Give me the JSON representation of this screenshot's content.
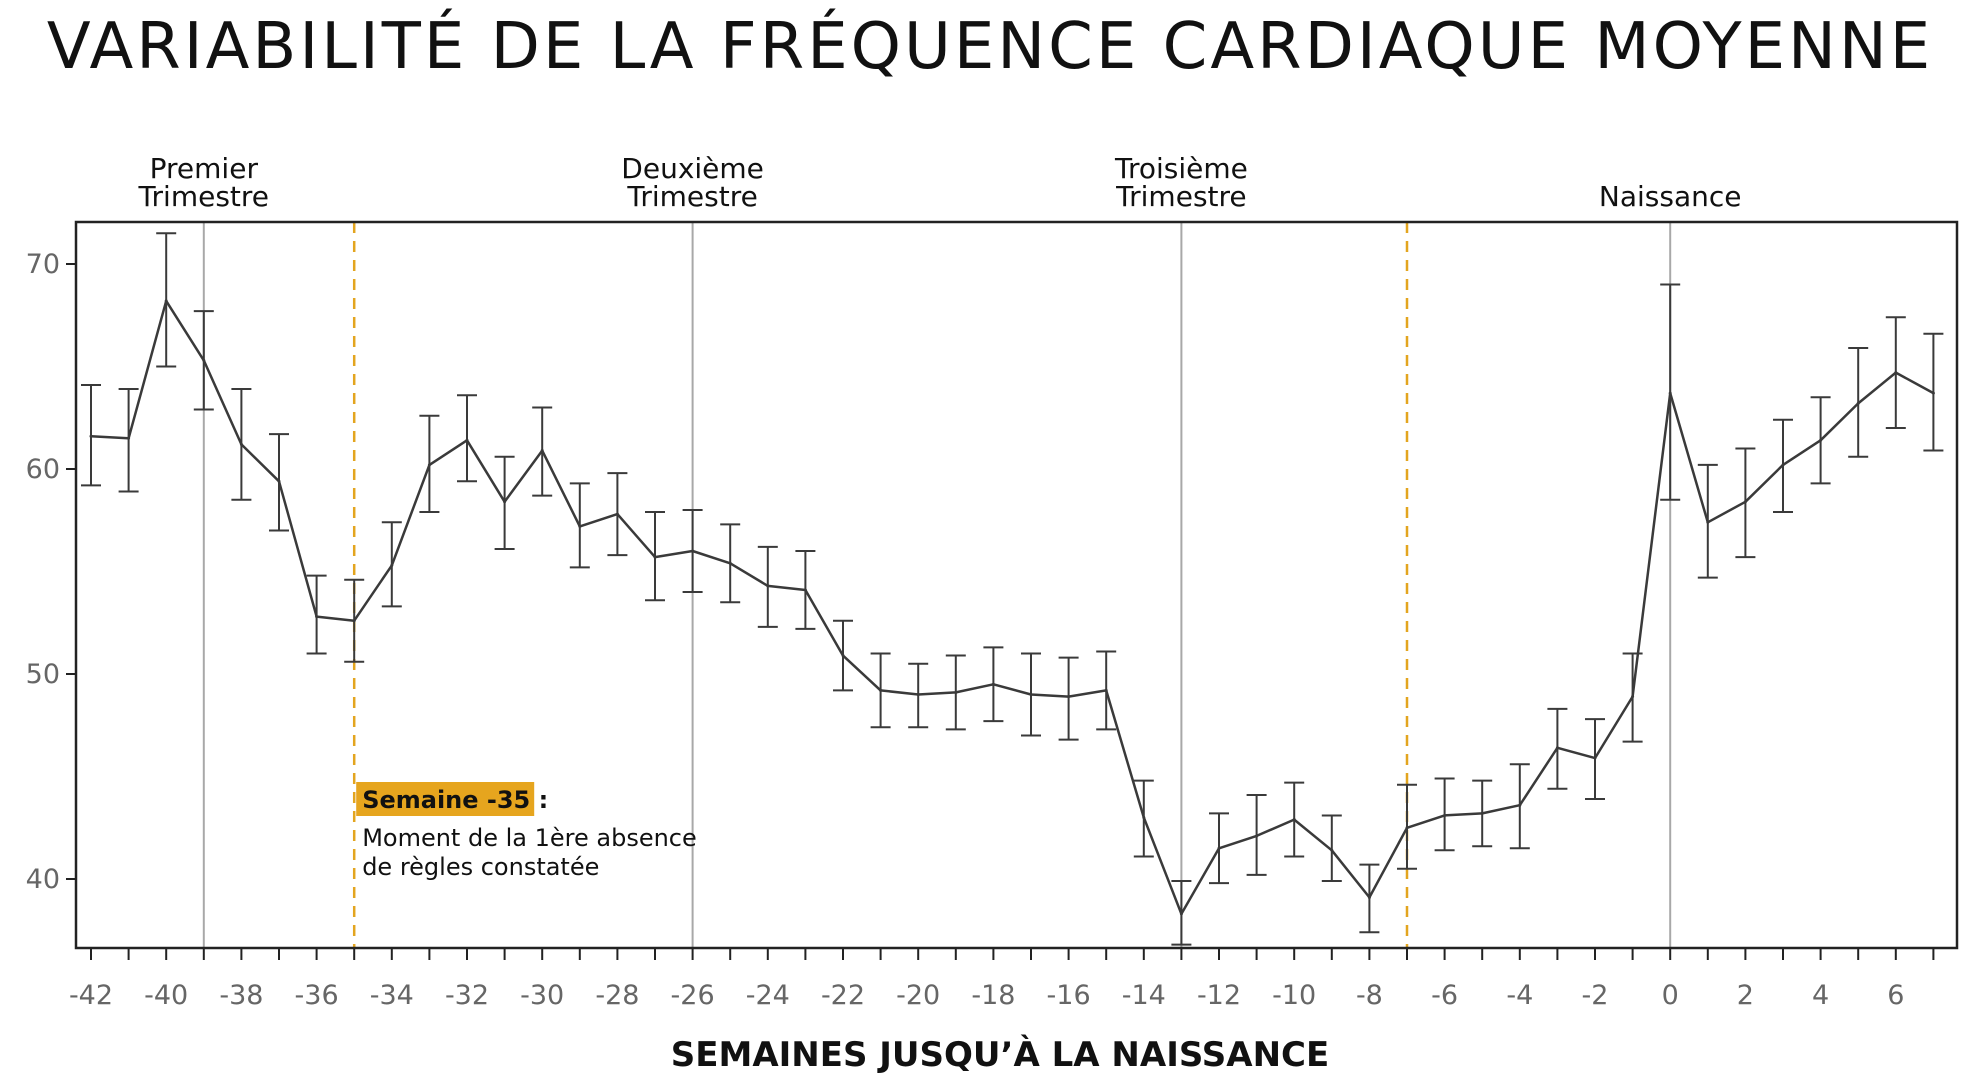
{
  "chart_data": {
    "type": "line",
    "title": "VARIABILITÉ DE LA FRÉQUENCE CARDIAQUE MOYENNE",
    "xlabel": "SEMAINES JUSQU’À LA NAISSANCE",
    "ylabel": "",
    "xlim": [
      -42.2,
      7.3
    ],
    "ylim": [
      36.5,
      72
    ],
    "x_ticks": [
      -42,
      -40,
      -38,
      -36,
      -34,
      -32,
      -30,
      -28,
      -26,
      -24,
      -22,
      -20,
      -18,
      -16,
      -14,
      -12,
      -10,
      -8,
      -6,
      -4,
      -2,
      0,
      2,
      4,
      6
    ],
    "x_tick_labels": [
      "-42",
      "-40",
      "-38",
      "-36",
      "-34",
      "-32",
      "-30",
      "-28",
      "-26",
      "-24",
      "-22",
      "-20",
      "-18",
      "-16",
      "-14",
      "-12",
      "-10",
      "-8",
      "-6",
      "-4",
      "-2",
      "0",
      "2",
      "4",
      "6"
    ],
    "y_ticks": [
      40,
      50,
      60,
      70
    ],
    "y_tick_labels": [
      "40",
      "50",
      "60",
      "70"
    ],
    "series": [
      {
        "name": "Variabilité de la fréquence cardiaque moyenne",
        "x": [
          -42,
          -41,
          -40,
          -39,
          -38,
          -37,
          -36,
          -35,
          -34,
          -33,
          -32,
          -31,
          -30,
          -29,
          -28,
          -27,
          -26,
          -25,
          -24,
          -23,
          -22,
          -21,
          -20,
          -19,
          -18,
          -17,
          -16,
          -15,
          -14,
          -13,
          -12,
          -11,
          -10,
          -9,
          -8,
          -7,
          -6,
          -5,
          -4,
          -3,
          -2,
          -1,
          0,
          1,
          2,
          3,
          4,
          5,
          6,
          7
        ],
        "y": [
          61.6,
          61.5,
          68.2,
          65.3,
          61.2,
          59.4,
          52.8,
          52.6,
          55.3,
          60.2,
          61.4,
          58.4,
          60.9,
          57.2,
          57.8,
          55.7,
          56.0,
          55.4,
          54.3,
          54.1,
          50.9,
          49.2,
          49.0,
          49.1,
          49.5,
          49.0,
          48.9,
          49.2,
          43.0,
          38.3,
          41.5,
          42.1,
          42.9,
          41.4,
          39.1,
          42.5,
          43.1,
          43.2,
          43.6,
          46.4,
          45.9,
          48.9,
          63.7,
          57.4,
          58.4,
          60.2,
          61.4,
          63.2,
          64.7,
          63.7
        ],
        "err_low": [
          59.2,
          58.9,
          65.0,
          62.9,
          58.5,
          57.0,
          51.0,
          50.6,
          53.3,
          57.9,
          59.4,
          56.1,
          58.7,
          55.2,
          55.8,
          53.6,
          54.0,
          53.5,
          52.3,
          52.2,
          49.2,
          47.4,
          47.4,
          47.3,
          47.7,
          47.0,
          46.8,
          47.3,
          41.1,
          36.8,
          39.8,
          40.2,
          41.1,
          39.9,
          37.4,
          40.5,
          41.4,
          41.6,
          41.5,
          44.4,
          43.9,
          46.7,
          58.5,
          54.7,
          55.7,
          57.9,
          59.3,
          60.6,
          62.0,
          60.9
        ],
        "err_high": [
          64.1,
          63.9,
          71.5,
          67.7,
          63.9,
          61.7,
          54.8,
          54.6,
          57.4,
          62.6,
          63.6,
          60.6,
          63.0,
          59.3,
          59.8,
          57.9,
          58.0,
          57.3,
          56.2,
          56.0,
          52.6,
          51.0,
          50.5,
          50.9,
          51.3,
          51.0,
          50.8,
          51.1,
          44.8,
          39.9,
          43.2,
          44.1,
          44.7,
          43.1,
          40.7,
          44.6,
          44.9,
          44.8,
          45.6,
          48.3,
          47.8,
          51.0,
          69.0,
          60.2,
          61.0,
          62.4,
          63.5,
          65.9,
          67.4,
          66.6
        ]
      }
    ],
    "period_lines": [
      {
        "x": -39,
        "label_lines": [
          "Premier",
          "Trimestre"
        ]
      },
      {
        "x": -26,
        "label_lines": [
          "Deuxième",
          "Trimestre"
        ]
      },
      {
        "x": -13,
        "label_lines": [
          "Troisième",
          "Trimestre"
        ]
      },
      {
        "x": 0,
        "label_lines": [
          "Naissance"
        ]
      }
    ],
    "dashed_lines": [
      -35,
      -7
    ],
    "annotation": {
      "x": -35,
      "title": "Semaine -35 :",
      "text_lines": [
        "Moment de la 1ère absence",
        "de règles constatée"
      ]
    },
    "colors": {
      "line": "#3a3a3a",
      "period_line": "#a8a8a8",
      "dashed_line": "#e3a51f",
      "annotation_bg": "#e6a51e",
      "tick_label": "#666666",
      "frame": "#222222"
    }
  }
}
